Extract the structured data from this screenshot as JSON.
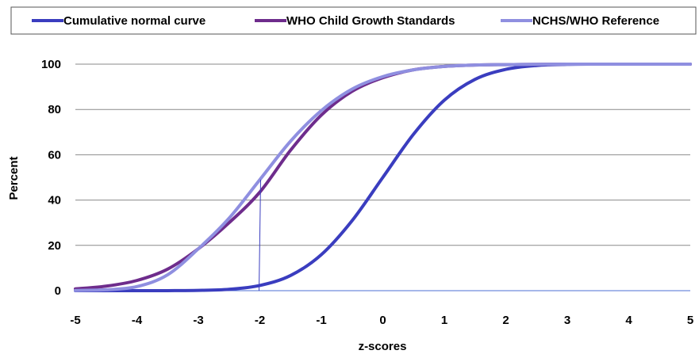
{
  "chart_data": {
    "type": "line",
    "xlabel": "z-scores",
    "ylabel": "Percent",
    "xlim": [
      -5,
      5
    ],
    "ylim": [
      0,
      100
    ],
    "x_ticks": [
      -5,
      -4,
      -3,
      -2,
      -1,
      0,
      1,
      2,
      3,
      4,
      5
    ],
    "y_ticks": [
      0,
      20,
      40,
      60,
      80,
      100
    ],
    "grid": "horizontal",
    "legend_position": "top",
    "x": [
      -5,
      -4.5,
      -4,
      -3.5,
      -3,
      -2.5,
      -2,
      -1.5,
      -1,
      -0.5,
      0,
      0.5,
      1,
      1.5,
      2,
      2.5,
      3,
      3.5,
      4,
      4.5,
      5
    ],
    "series": [
      {
        "name": "Cumulative normal curve",
        "color": "#3a3dbf",
        "values": [
          0,
          0,
          0,
          0.02,
          0.13,
          0.62,
          2.3,
          6.7,
          15.9,
          30.9,
          50,
          69.1,
          84.1,
          93.3,
          97.7,
          99.4,
          99.9,
          100,
          100,
          100,
          100
        ]
      },
      {
        "name": "WHO Child Growth Standards",
        "color": "#6e2c8c",
        "values": [
          0.8,
          2.0,
          4.5,
          9.5,
          18.5,
          30,
          43.5,
          62,
          77.5,
          88,
          94,
          97.5,
          99,
          99.6,
          99.8,
          99.9,
          100,
          100,
          100,
          100,
          100
        ]
      },
      {
        "name": "NCHS/WHO Reference",
        "color": "#8f8fe0",
        "values": [
          0.1,
          0.4,
          1.8,
          7.0,
          18.5,
          32,
          49,
          66,
          79.5,
          89,
          94.5,
          97.5,
          99,
          99.6,
          99.8,
          99.9,
          100,
          100,
          100,
          100,
          100
        ]
      }
    ],
    "reference_line": {
      "x": -2,
      "color": "#3a3dbf"
    }
  }
}
